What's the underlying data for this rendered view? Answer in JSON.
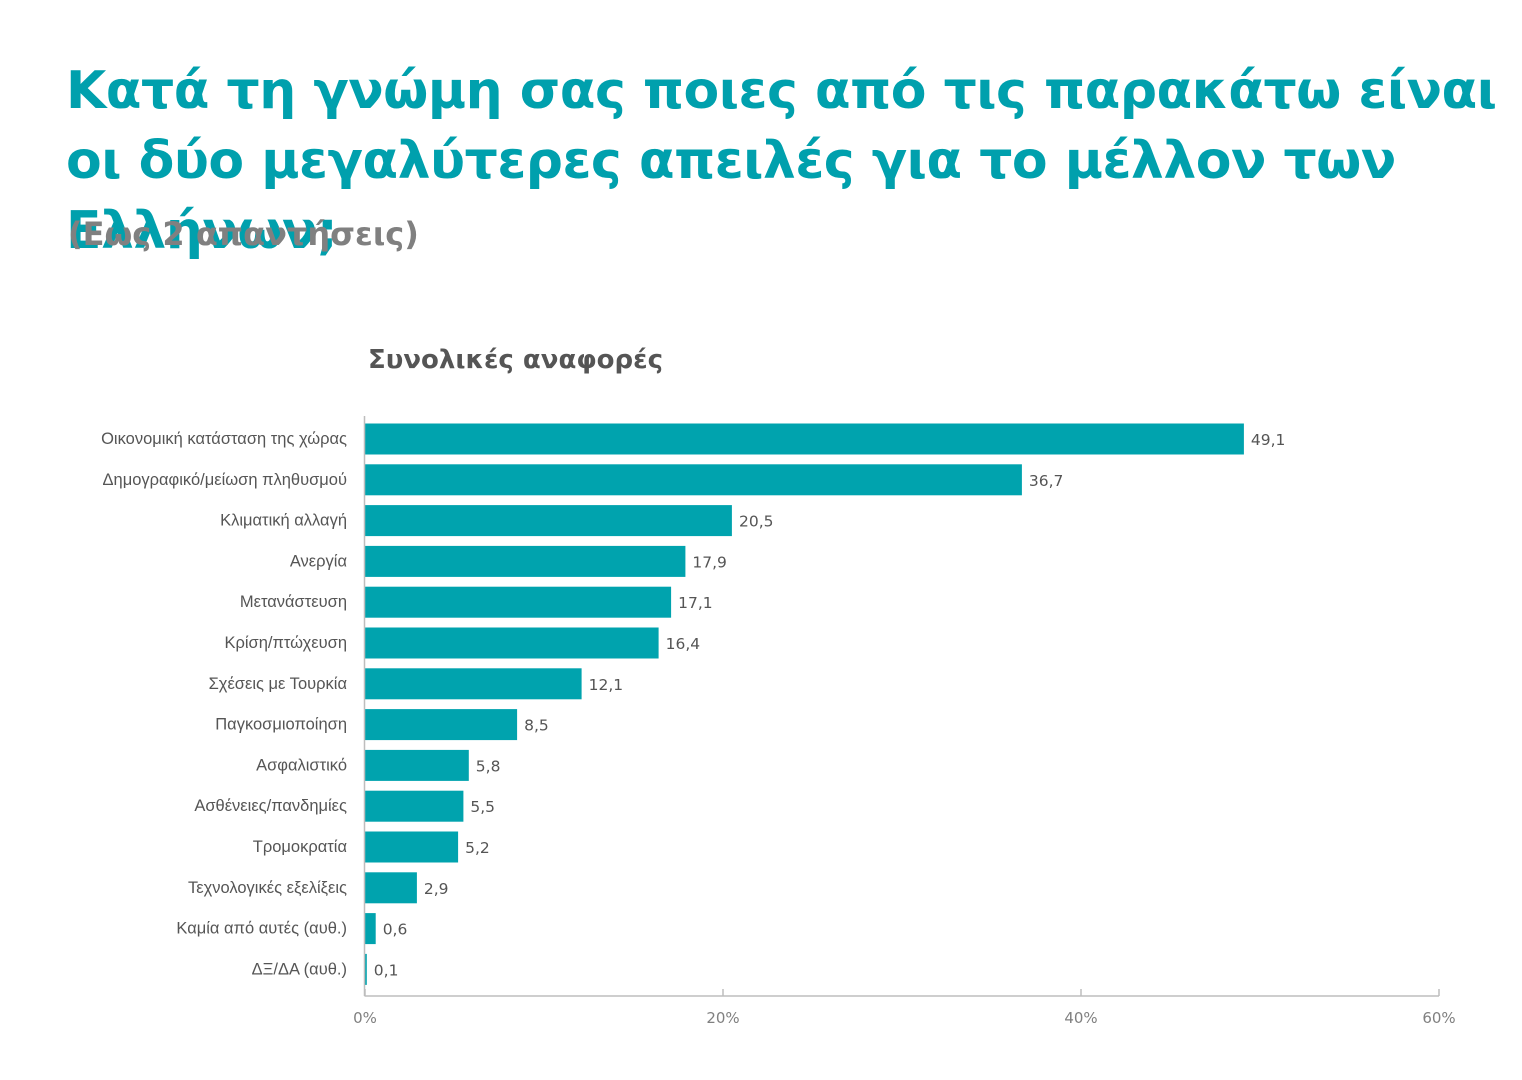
{
  "title": "Κατά τη γνώμη σας ποιες από τις παρακάτω είναι οι δύο μεγαλύτερες απειλές για το μέλλον των Ελλήνων;",
  "subtitle": "(Εως 2 απαντήσεις)",
  "colors": {
    "bar": "#00a3ae",
    "title": "#00a0ad",
    "subtitle": "#808080",
    "text": "#555555",
    "axis": "#bdbdbd"
  },
  "chart_data": {
    "type": "bar",
    "orientation": "horizontal",
    "title": "Συνολικές αναφορές",
    "categories": [
      "Οικονομική κατάσταση της χώρας",
      "Δημογραφικό/μείωση  πληθυσμού",
      "Κλιματική αλλαγή",
      "Ανεργία",
      "Μετανάστευση",
      "Κρίση/πτώχευση",
      "Σχέσεις με Τουρκία",
      "Παγκοσμιοποίηση",
      "Ασφαλιστικό",
      "Ασθένειες/πανδημίες",
      "Τρομοκρατία",
      "Τεχνολογικές εξελίξεις",
      "Καμία από αυτές (αυθ.)",
      "ΔΞ/ΔΑ (αυθ.)"
    ],
    "values": [
      49.1,
      36.7,
      20.5,
      17.9,
      17.1,
      16.4,
      12.1,
      8.5,
      5.8,
      5.5,
      5.2,
      2.9,
      0.6,
      0.1
    ],
    "value_labels": [
      "49,1",
      "36,7",
      "20,5",
      "17,9",
      "17,1",
      "16,4",
      "12,1",
      "8,5",
      "5,8",
      "5,5",
      "5,2",
      "2,9",
      "0,6",
      "0,1"
    ],
    "xlim": [
      0,
      60
    ],
    "xticks": [
      0,
      20,
      40,
      60
    ],
    "xtick_labels": [
      "0%",
      "20%",
      "40%",
      "60%"
    ],
    "grid": false,
    "legend": "none"
  }
}
